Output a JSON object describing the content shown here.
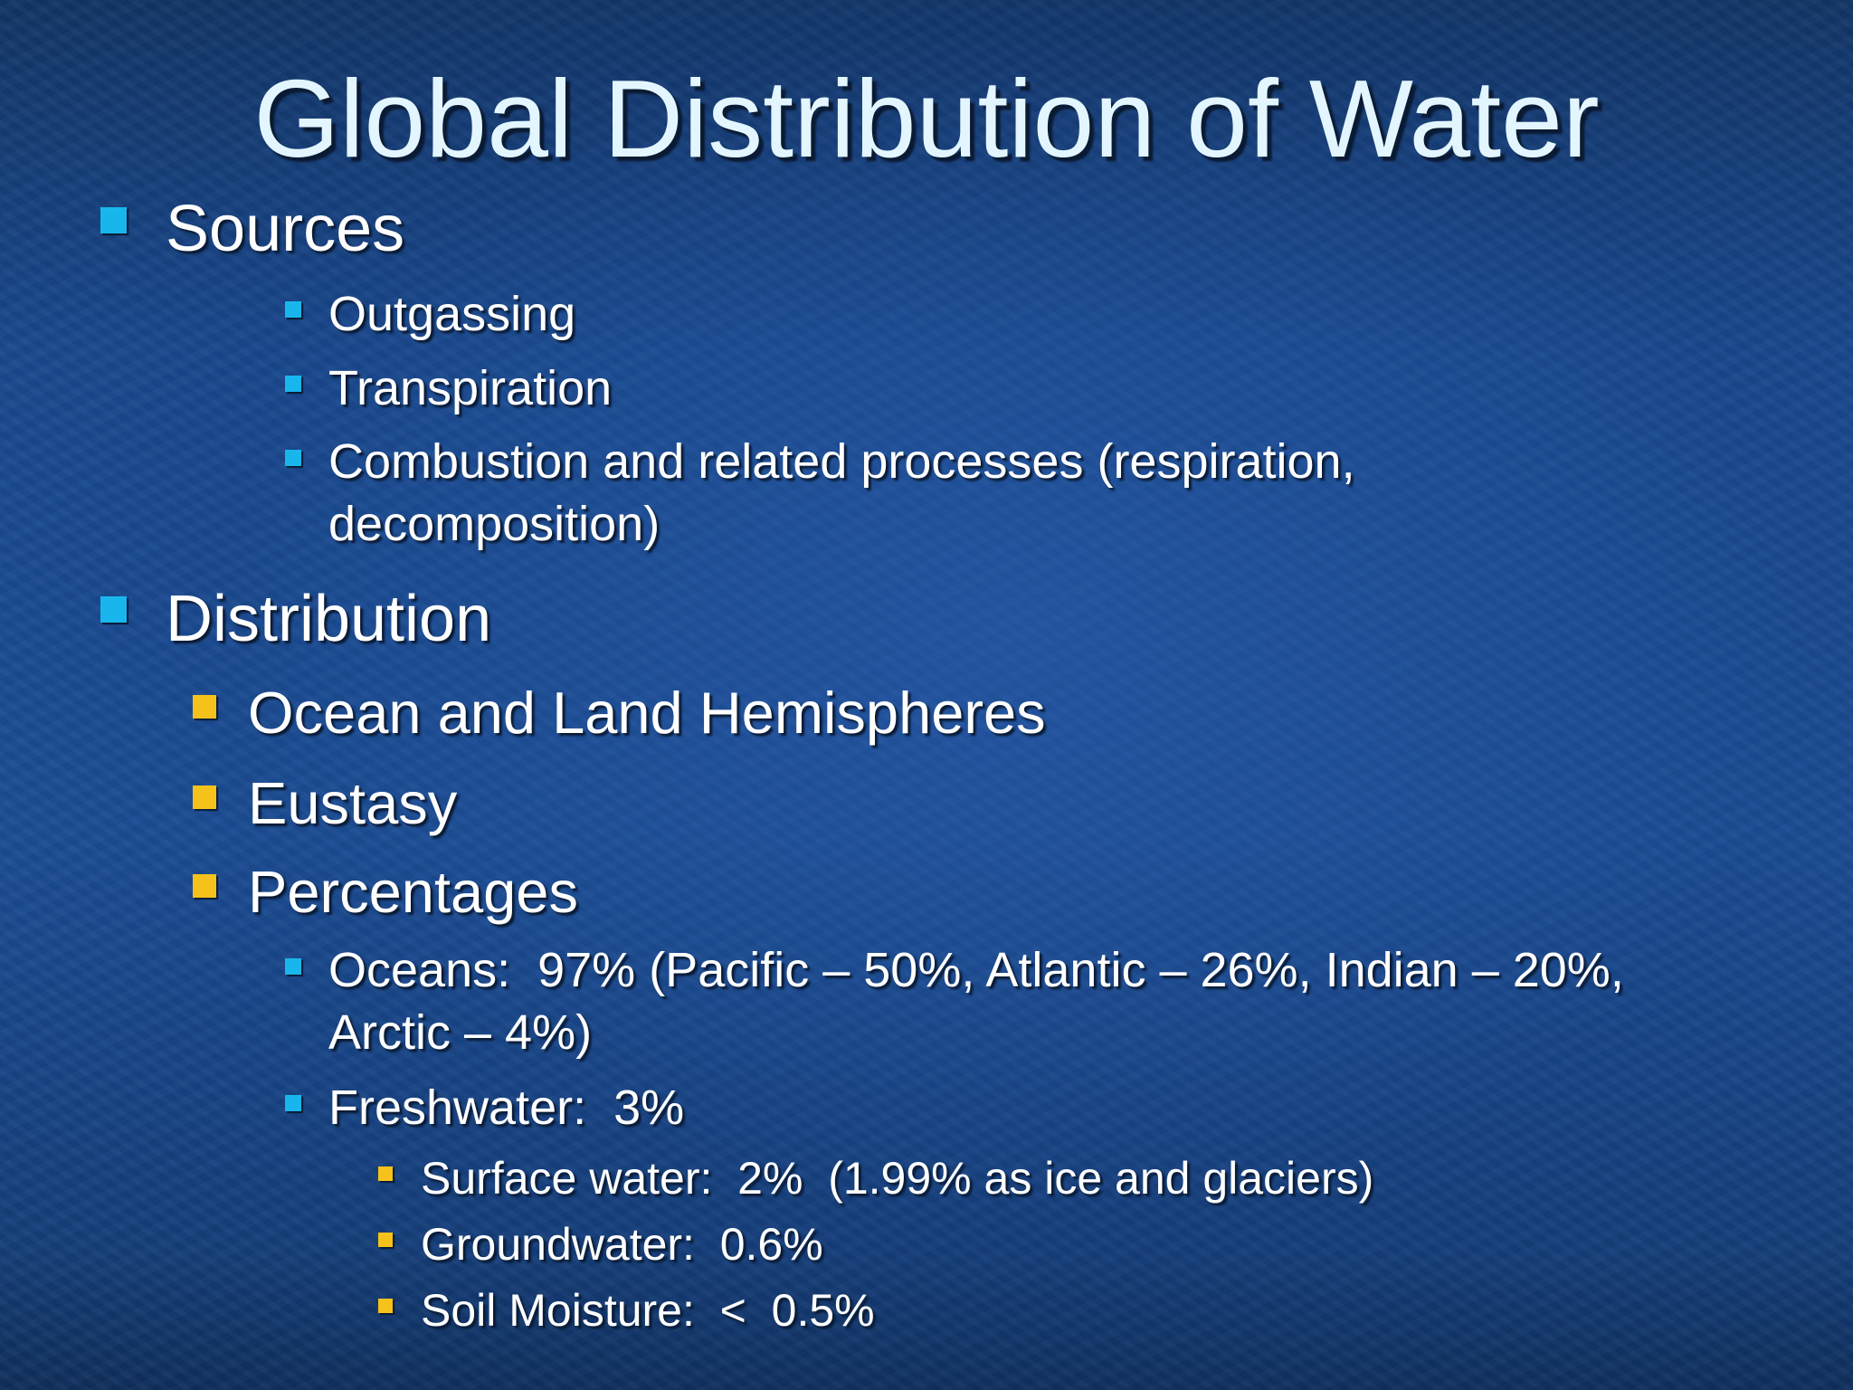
{
  "slide": {
    "title": "Global Distribution of Water",
    "items": [
      {
        "text": "Sources"
      },
      {
        "text": "Outgassing"
      },
      {
        "text": "Transpiration"
      },
      {
        "text": "Combustion and related processes (respiration, decomposition)"
      },
      {
        "text": "Distribution"
      },
      {
        "text": "Ocean and Land Hemispheres"
      },
      {
        "text": "Eustasy"
      },
      {
        "text": "Percentages"
      },
      {
        "text": "Oceans:  97% (Pacific – 50%, Atlantic – 26%, Indian – 20%, Arctic – 4%)"
      },
      {
        "text": "Freshwater:  3%"
      },
      {
        "text": "Surface water:  2%  (1.99% as ice and glaciers)"
      },
      {
        "text": "Groundwater:  0.6%"
      },
      {
        "text": "Soil Moisture:  <  0.5%"
      }
    ]
  }
}
